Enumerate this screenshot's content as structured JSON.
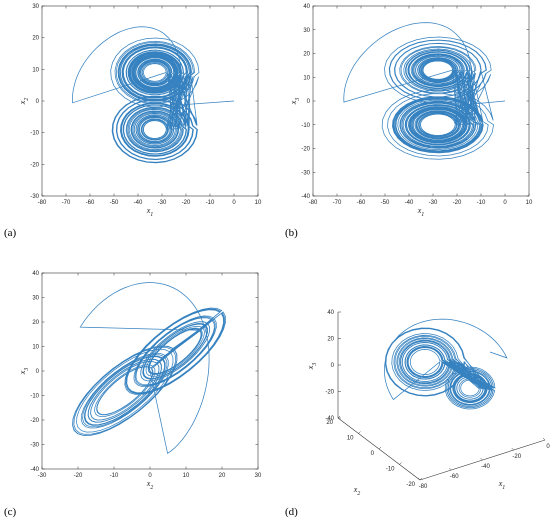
{
  "chart_data": [
    {
      "type": "line",
      "panel_label": "(a)",
      "xlabel": "x",
      "xlabel_sub": "1",
      "ylabel": "x",
      "ylabel_sub": "2",
      "xlim": [
        -80,
        10
      ],
      "ylim": [
        -30,
        30
      ],
      "xticks": [
        -80,
        -70,
        -60,
        -50,
        -40,
        -30,
        -20,
        -10,
        0,
        10
      ],
      "yticks": [
        -30,
        -20,
        -10,
        0,
        10,
        20,
        30
      ],
      "grid": false,
      "attractor": {
        "left_lobe_center": [
          -33,
          9
        ],
        "right_lobe_center": [
          -33,
          -9
        ],
        "lobe_radius": [
          10,
          8
        ],
        "start": [
          0,
          0
        ],
        "transient_extent": {
          "x_min": -68,
          "y_max": 27,
          "y_min": -22
        }
      }
    },
    {
      "type": "line",
      "panel_label": "(b)",
      "xlabel": "x",
      "xlabel_sub": "1",
      "ylabel": "x",
      "ylabel_sub": "3",
      "xlim": [
        -80,
        10
      ],
      "ylim": [
        -40,
        40
      ],
      "xticks": [
        -80,
        -70,
        -60,
        -50,
        -40,
        -30,
        -20,
        -10,
        0,
        10
      ],
      "yticks": [
        -40,
        -30,
        -20,
        -10,
        0,
        10,
        20,
        30,
        40
      ],
      "grid": false,
      "attractor": {
        "left_lobe_center": [
          -28,
          13
        ],
        "right_lobe_center": [
          -28,
          -10
        ],
        "lobe_radius": [
          13,
          11
        ],
        "start": [
          0,
          0
        ],
        "transient_extent": {
          "x_min": -68,
          "y_max": 38,
          "y_min": -32
        }
      }
    },
    {
      "type": "line",
      "panel_label": "(c)",
      "xlabel": "x",
      "xlabel_sub": "2",
      "ylabel": "x",
      "ylabel_sub": "3",
      "xlim": [
        -30,
        30
      ],
      "ylim": [
        -40,
        40
      ],
      "xticks": [
        -30,
        -20,
        -10,
        0,
        10,
        20,
        30
      ],
      "yticks": [
        -40,
        -30,
        -20,
        -10,
        0,
        10,
        20,
        30,
        40
      ],
      "grid": false,
      "attractor": {
        "slope": 1.15,
        "major_extent": [
          -24,
          24
        ],
        "minor_width": 10,
        "start": [
          0,
          0
        ],
        "transient_extent": {
          "x_max": 25,
          "y_max": 38,
          "y_min": -34
        }
      }
    },
    {
      "type": "line",
      "panel_label": "(d)",
      "view": "3d",
      "xlabel": "x",
      "xlabel_sub": "1",
      "ylabel": "x",
      "ylabel_sub": "2",
      "zlabel": "x",
      "zlabel_sub": "3",
      "xticks": [
        -80,
        -60,
        -40,
        -20,
        0
      ],
      "yticks": [
        -20,
        -10,
        0,
        10,
        20
      ],
      "zticks": [
        -40,
        -20,
        0,
        20,
        40
      ],
      "grid": false
    }
  ]
}
